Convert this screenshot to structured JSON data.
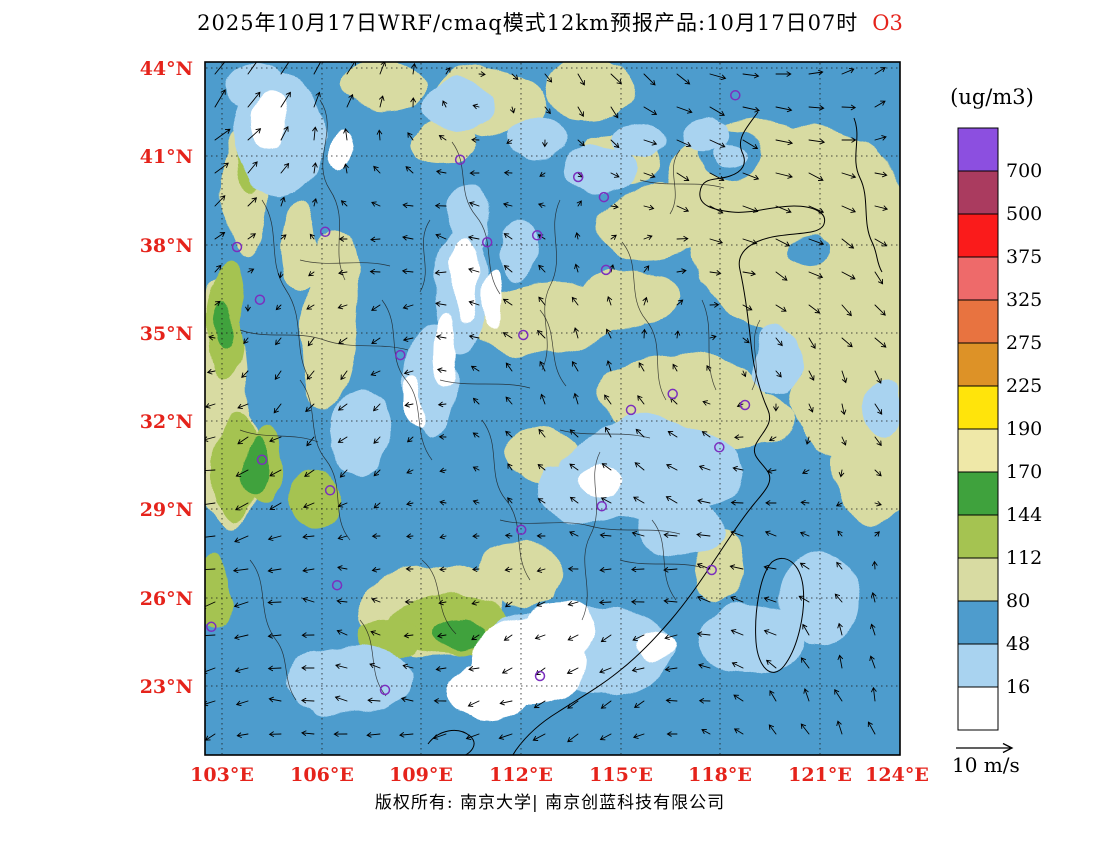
{
  "title": {
    "main": "2025年10月17日WRF/cmaq模式12km预报产品:10月17日07时",
    "species": "O3"
  },
  "axes": {
    "lat_labels": [
      "44°N",
      "41°N",
      "38°N",
      "35°N",
      "32°N",
      "29°N",
      "26°N",
      "23°N"
    ],
    "lon_labels": [
      "103°E",
      "106°E",
      "109°E",
      "112°E",
      "115°E",
      "118°E",
      "121°E",
      "124°E"
    ]
  },
  "legend": {
    "title": "(ug/m3)"
  },
  "wind_legend": {
    "label": "10 m/s"
  },
  "footer": {
    "text": "版权所有: 南京大学| 南京创蓝科技有限公司"
  },
  "colors": {
    "axis_label": "#E5231B",
    "species": "#E5231B",
    "station": "#7B2FBE",
    "boundary": "#1A1A1A"
  },
  "chart_data": {
    "type": "heatmap",
    "title": "WRF/CMAQ 12km O3 forecast, 2025-10-17 07:00",
    "units": "ug/m3",
    "lon_ticks": [
      103,
      106,
      109,
      112,
      115,
      118,
      121,
      124
    ],
    "lat_ticks": [
      23,
      26,
      29,
      32,
      35,
      38,
      41,
      44
    ],
    "lon_range": [
      102.5,
      124.1
    ],
    "lat_range": [
      20.7,
      44.2
    ],
    "levels": [
      16,
      48,
      80,
      112,
      144,
      170,
      190,
      225,
      275,
      325,
      375,
      500,
      700
    ],
    "colors_low_to_high": [
      "#FFFFFF",
      "#A9D3F0",
      "#4E9CCD",
      "#D8DBA2",
      "#A5C351",
      "#3FA23D",
      "#EFE8A8",
      "#FFE40B",
      "#DD9227",
      "#E87340",
      "#EE6A6A",
      "#FA1B1B",
      "#AA3B5F",
      "#8C4FE0"
    ],
    "base_level_index": 2,
    "field_regions": [
      {
        "li": 3,
        "shapes": [
          [
            0.856,
            0.242,
            112,
            105,
            0
          ],
          [
            0.77,
            0.168,
            80,
            55,
            -20
          ],
          [
            0.791,
            0.213,
            40,
            22,
            10
          ],
          [
            0.942,
            0.387,
            72,
            82,
            0
          ],
          [
            0.93,
            0.49,
            62,
            55,
            0
          ],
          [
            0.972,
            0.575,
            46,
            62,
            0
          ],
          [
            0.655,
            0.228,
            62,
            36,
            -15
          ],
          [
            0.597,
            0.141,
            40,
            28,
            0
          ],
          [
            0.41,
            0.057,
            56,
            36,
            10
          ],
          [
            0.554,
            0.04,
            46,
            30,
            0
          ],
          [
            0.259,
            0.033,
            42,
            26,
            0
          ],
          [
            0.345,
            0.113,
            30,
            22,
            0
          ],
          [
            0.058,
            0.185,
            22,
            62,
            0
          ],
          [
            0.137,
            0.271,
            20,
            46,
            0
          ],
          [
            0.18,
            0.372,
            26,
            92,
            5
          ],
          [
            0.489,
            0.372,
            72,
            38,
            -5
          ],
          [
            0.597,
            0.343,
            46,
            30,
            0
          ],
          [
            0.64,
            0.343,
            35,
            25,
            0
          ],
          [
            0.683,
            0.481,
            86,
            40,
            0
          ],
          [
            0.77,
            0.517,
            52,
            30,
            0
          ],
          [
            0.022,
            0.488,
            26,
            122,
            0
          ],
          [
            0.036,
            0.589,
            30,
            62,
            0
          ],
          [
            0.482,
            0.567,
            36,
            26,
            0
          ],
          [
            0.324,
            0.791,
            72,
            46,
            0
          ],
          [
            0.453,
            0.74,
            46,
            30,
            0
          ],
          [
            0.741,
            0.726,
            26,
            36,
            0
          ]
        ]
      },
      {
        "li": 2,
        "shapes": [
          [
            0.755,
            0.136,
            30,
            26,
            0
          ],
          [
            0.87,
            0.27,
            18,
            14,
            0
          ]
        ]
      },
      {
        "li": 4,
        "shapes": [
          [
            0.029,
            0.387,
            18,
            52,
            0
          ],
          [
            0.043,
            0.589,
            22,
            56,
            0
          ],
          [
            0.086,
            0.582,
            18,
            36,
            0
          ],
          [
            0.353,
            0.812,
            62,
            28,
            0
          ],
          [
            0.266,
            0.834,
            32,
            20,
            0
          ],
          [
            0.014,
            0.762,
            16,
            36,
            0
          ],
          [
            0.065,
            0.141,
            12,
            30,
            0
          ],
          [
            0.036,
            0.343,
            14,
            40,
            0
          ],
          [
            0.158,
            0.63,
            25,
            30,
            0
          ]
        ]
      },
      {
        "li": 5,
        "shapes": [
          [
            0.029,
            0.38,
            10,
            24,
            0
          ],
          [
            0.072,
            0.582,
            12,
            26,
            0
          ],
          [
            0.367,
            0.823,
            26,
            14,
            0
          ],
          [
            0.424,
            0.834,
            16,
            10,
            0
          ]
        ]
      },
      {
        "li": 1,
        "shapes": [
          [
            0.108,
            0.105,
            44,
            60,
            0
          ],
          [
            0.072,
            0.033,
            30,
            22,
            0
          ],
          [
            0.367,
            0.062,
            36,
            26,
            0
          ],
          [
            0.482,
            0.113,
            30,
            20,
            0
          ],
          [
            0.568,
            0.156,
            36,
            26,
            0
          ],
          [
            0.626,
            0.113,
            26,
            18,
            0
          ],
          [
            0.719,
            0.105,
            24,
            18,
            0
          ],
          [
            0.755,
            0.136,
            16,
            12,
            0
          ],
          [
            0.453,
            0.271,
            22,
            30,
            0
          ],
          [
            0.367,
            0.329,
            28,
            62,
            0
          ],
          [
            0.324,
            0.459,
            26,
            56,
            0
          ],
          [
            0.381,
            0.228,
            20,
            36,
            0
          ],
          [
            0.223,
            0.531,
            30,
            42,
            0
          ],
          [
            0.82,
            0.43,
            25,
            35,
            0
          ],
          [
            0.64,
            0.589,
            92,
            52,
            0
          ],
          [
            0.554,
            0.618,
            52,
            36,
            0
          ],
          [
            0.683,
            0.675,
            42,
            28,
            0
          ],
          [
            0.568,
            0.848,
            72,
            42,
            0
          ],
          [
            0.209,
            0.892,
            62,
            36,
            0
          ],
          [
            0.784,
            0.834,
            52,
            36,
            0
          ],
          [
            0.885,
            0.776,
            42,
            46,
            0
          ],
          [
            0.975,
            0.5,
            20,
            28,
            0
          ],
          [
            0.468,
            0.834,
            42,
            30,
            0
          ]
        ]
      },
      {
        "li": 0,
        "shapes": [
          [
            0.094,
            0.084,
            18,
            30,
            0
          ],
          [
            0.194,
            0.127,
            12,
            22,
            0
          ],
          [
            0.374,
            0.315,
            14,
            42,
            0
          ],
          [
            0.417,
            0.343,
            10,
            30,
            0
          ],
          [
            0.345,
            0.416,
            12,
            36,
            0
          ],
          [
            0.302,
            0.488,
            10,
            26,
            0
          ],
          [
            0.568,
            0.603,
            26,
            18,
            0
          ],
          [
            0.468,
            0.863,
            56,
            46,
            0
          ],
          [
            0.511,
            0.82,
            36,
            30,
            0
          ],
          [
            0.41,
            0.906,
            42,
            30,
            0
          ],
          [
            0.647,
            0.841,
            18,
            14,
            0
          ]
        ]
      }
    ],
    "stations": [
      [
        0.763,
        0.048
      ],
      [
        0.367,
        0.141
      ],
      [
        0.537,
        0.166
      ],
      [
        0.574,
        0.195
      ],
      [
        0.478,
        0.25
      ],
      [
        0.406,
        0.26
      ],
      [
        0.173,
        0.245
      ],
      [
        0.046,
        0.267
      ],
      [
        0.577,
        0.3
      ],
      [
        0.079,
        0.343
      ],
      [
        0.458,
        0.394
      ],
      [
        0.281,
        0.423
      ],
      [
        0.673,
        0.479
      ],
      [
        0.613,
        0.502
      ],
      [
        0.777,
        0.495
      ],
      [
        0.082,
        0.574
      ],
      [
        0.74,
        0.556
      ],
      [
        0.18,
        0.618
      ],
      [
        0.571,
        0.641
      ],
      [
        0.455,
        0.675
      ],
      [
        0.729,
        0.733
      ],
      [
        0.19,
        0.755
      ],
      [
        0.009,
        0.815
      ],
      [
        0.259,
        0.906
      ],
      [
        0.482,
        0.886
      ]
    ],
    "wind": {
      "reference": "10 m/s",
      "seed": 11,
      "spacing_px": 33
    }
  }
}
